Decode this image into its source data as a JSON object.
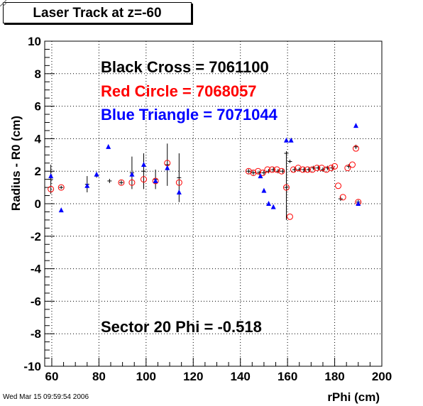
{
  "title": "Laser Track at z=-60",
  "timestamp": "Wed Mar 15 09:59:54 2006",
  "chart_data": {
    "type": "scatter",
    "xlabel": "rPhi (cm)",
    "ylabel": "Radius - R0 (cm)",
    "xlim": [
      57,
      200
    ],
    "ylim": [
      -10,
      10
    ],
    "grid": true,
    "x_ticks": [
      "60",
      "80",
      "100",
      "120",
      "140",
      "160",
      "180",
      "200"
    ],
    "y_ticks": [
      "-10",
      "-8",
      "-6",
      "-4",
      "-2",
      "0",
      "2",
      "4",
      "6",
      "8",
      "10"
    ],
    "annotations": {
      "black": "Black Cross  = 7061100",
      "red": "Red Circle = 7068057",
      "blue": "Blue Triangle = 7071044",
      "sector": "Sector 20 Phi = -0.518"
    },
    "colors": {
      "black": "#000000",
      "red": "#ff0000",
      "blue": "#0000ff"
    },
    "series": [
      {
        "marker": "cross",
        "color": "#000000",
        "points": [
          [
            59.6,
            1.5,
            0.9
          ],
          [
            64.0,
            1.0,
            0.1
          ],
          [
            75.0,
            1.2,
            0.5
          ],
          [
            79.0,
            1.7,
            0.1
          ],
          [
            84.5,
            1.4,
            0.0
          ],
          [
            89.5,
            1.3,
            0.0
          ],
          [
            94.0,
            1.9,
            1.0
          ],
          [
            99.0,
            2.0,
            1.1
          ],
          [
            104.0,
            1.5,
            0.6
          ],
          [
            109.0,
            2.4,
            1.3
          ],
          [
            114.0,
            1.6,
            1.5
          ],
          [
            143.5,
            2.0,
            0.0
          ],
          [
            145.5,
            1.9,
            0.0
          ],
          [
            148.0,
            1.9,
            0.0
          ],
          [
            150.0,
            1.9,
            0.0
          ],
          [
            152.0,
            2.0,
            0.0
          ],
          [
            154.0,
            2.1,
            0.0
          ],
          [
            156.0,
            2.0,
            0.0
          ],
          [
            158.0,
            2.0,
            0.0
          ],
          [
            159.5,
            1.0,
            2.0
          ],
          [
            161.0,
            2.6,
            0.1
          ],
          [
            163.0,
            2.1,
            0.0
          ],
          [
            165.0,
            2.1,
            0.0
          ],
          [
            167.0,
            2.1,
            0.0
          ],
          [
            169.0,
            2.1,
            0.0
          ],
          [
            171.0,
            2.2,
            0.0
          ],
          [
            173.0,
            2.2,
            0.0
          ],
          [
            175.0,
            2.1,
            0.0
          ],
          [
            177.0,
            2.2,
            0.0
          ],
          [
            179.0,
            2.2,
            0.0
          ],
          [
            182.5,
            0.3,
            0.0
          ],
          [
            186.0,
            2.3,
            0.0
          ],
          [
            189.0,
            3.5,
            0.0
          ],
          [
            190.0,
            0.1,
            0.0
          ],
          [
            159.5,
            3.1,
            0.0
          ]
        ]
      },
      {
        "marker": "circle",
        "color": "#ff0000",
        "points": [
          [
            59.6,
            0.9
          ],
          [
            64.0,
            1.0
          ],
          [
            89.5,
            1.3
          ],
          [
            94.0,
            1.3
          ],
          [
            99.0,
            1.5
          ],
          [
            104.0,
            1.4
          ],
          [
            109.0,
            2.5
          ],
          [
            114.0,
            1.3
          ],
          [
            143.5,
            2.0
          ],
          [
            145.5,
            1.9
          ],
          [
            147.5,
            2.0
          ],
          [
            149.5,
            1.9
          ],
          [
            151.5,
            2.1
          ],
          [
            153.5,
            2.1
          ],
          [
            155.5,
            2.1
          ],
          [
            157.5,
            2.0
          ],
          [
            159.5,
            1.0
          ],
          [
            161.0,
            -0.8
          ],
          [
            162.5,
            2.1
          ],
          [
            164.5,
            2.2
          ],
          [
            166.5,
            2.1
          ],
          [
            168.5,
            2.1
          ],
          [
            170.5,
            2.1
          ],
          [
            172.5,
            2.2
          ],
          [
            174.5,
            2.2
          ],
          [
            176.5,
            2.1
          ],
          [
            178.5,
            2.2
          ],
          [
            180.0,
            2.3
          ],
          [
            181.5,
            1.1
          ],
          [
            183.5,
            0.4
          ],
          [
            185.5,
            2.2
          ],
          [
            187.5,
            2.4
          ],
          [
            189.0,
            3.4
          ],
          [
            190.0,
            0.1
          ]
        ]
      },
      {
        "marker": "triangle",
        "color": "#0000ff",
        "points": [
          [
            59.6,
            1.7
          ],
          [
            64.0,
            -0.4
          ],
          [
            75.0,
            1.1
          ],
          [
            79.0,
            1.8
          ],
          [
            84.0,
            3.5
          ],
          [
            94.0,
            1.8
          ],
          [
            99.0,
            2.4
          ],
          [
            104.0,
            1.4
          ],
          [
            109.0,
            2.2
          ],
          [
            114.0,
            0.7
          ],
          [
            148.5,
            1.7
          ],
          [
            150.0,
            0.8
          ],
          [
            152.0,
            0.0
          ],
          [
            154.0,
            -0.2
          ],
          [
            159.5,
            3.9
          ],
          [
            161.5,
            3.9
          ],
          [
            189.0,
            4.8
          ],
          [
            190.0,
            0.0
          ]
        ]
      }
    ]
  }
}
